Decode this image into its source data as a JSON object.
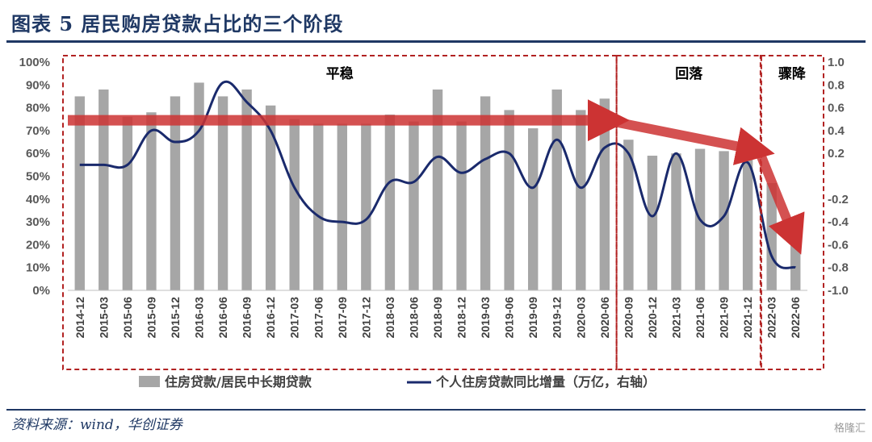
{
  "header": {
    "title": "图表 5 居民购房贷款占比的三个阶段"
  },
  "footer": {
    "source": "资料来源：wind，华创证券",
    "watermark": "格隆汇"
  },
  "chart_data": {
    "type": "bar",
    "categories": [
      "2014-12",
      "2015-03",
      "2015-06",
      "2015-09",
      "2015-12",
      "2016-03",
      "2016-06",
      "2016-09",
      "2016-12",
      "2017-03",
      "2017-06",
      "2017-09",
      "2017-12",
      "2018-03",
      "2018-06",
      "2018-09",
      "2018-12",
      "2019-03",
      "2019-06",
      "2019-09",
      "2019-12",
      "2020-03",
      "2020-06",
      "2020-09",
      "2020-12",
      "2021-03",
      "2021-06",
      "2021-09",
      "2021-12",
      "2022-03",
      "2022-06"
    ],
    "series": [
      {
        "name": "住房贷款/居民中长期贷款",
        "type": "bar",
        "axis": "left",
        "values": [
          0.85,
          0.88,
          0.76,
          0.78,
          0.85,
          0.91,
          0.85,
          0.88,
          0.81,
          0.75,
          0.73,
          0.73,
          0.73,
          0.77,
          0.74,
          0.88,
          0.74,
          0.85,
          0.79,
          0.71,
          0.88,
          0.79,
          0.84,
          0.66,
          0.59,
          0.6,
          0.62,
          0.61,
          0.66,
          0.47,
          0.2
        ]
      },
      {
        "name": "个人住房贷款同比增量（万亿，右轴）",
        "type": "line",
        "axis": "right",
        "values": [
          0.1,
          0.1,
          0.1,
          0.4,
          0.3,
          0.4,
          0.82,
          0.65,
          0.4,
          -0.1,
          -0.35,
          -0.4,
          -0.38,
          -0.05,
          -0.05,
          0.17,
          0.03,
          0.15,
          0.2,
          -0.1,
          0.32,
          -0.1,
          0.25,
          0.2,
          -0.35,
          0.2,
          -0.38,
          -0.35,
          0.12,
          -0.7,
          -0.8
        ]
      }
    ],
    "y_left": {
      "min": 0,
      "max": 1,
      "ticks": [
        "0%",
        "10%",
        "20%",
        "30%",
        "40%",
        "50%",
        "60%",
        "70%",
        "80%",
        "90%",
        "100%"
      ]
    },
    "y_right": {
      "min": -1.0,
      "max": 1.0,
      "ticks": [
        "-1.0",
        "-0.8",
        "-0.6",
        "-0.4",
        "-0.2",
        "",
        "0.2",
        "0.4",
        "0.6",
        "0.8",
        "1.0"
      ]
    },
    "phases": [
      {
        "label": "平稳",
        "from": "2014-12",
        "to": "2020-06"
      },
      {
        "label": "回落",
        "from": "2020-09",
        "to": "2021-12"
      },
      {
        "label": "骤降",
        "from": "2022-03",
        "to": "2022-06"
      }
    ],
    "legend_position": "bottom",
    "colors": {
      "bar": "#a6a6a6",
      "line": "#1a2a6c",
      "arrow": "#cc3333",
      "phase_box": "#b22222"
    }
  }
}
